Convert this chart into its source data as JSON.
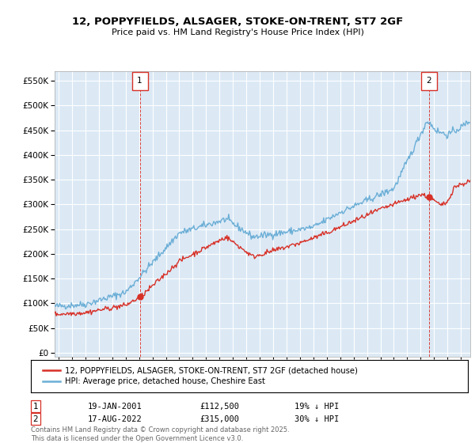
{
  "title_line1": "12, POPPYFIELDS, ALSAGER, STOKE-ON-TRENT, ST7 2GF",
  "title_line2": "Price paid vs. HM Land Registry's House Price Index (HPI)",
  "bg_color": "#dce9f5",
  "grid_color": "#ffffff",
  "hpi_color": "#6baed6",
  "price_color": "#d73027",
  "sale1_label": "19-JAN-2001",
  "sale1_value_str": "£112,500",
  "sale1_pct": "19% ↓ HPI",
  "sale2_label": "17-AUG-2022",
  "sale2_value_str": "£315,000",
  "sale2_pct": "30% ↓ HPI",
  "legend_label1": "12, POPPYFIELDS, ALSAGER, STOKE-ON-TRENT, ST7 2GF (detached house)",
  "legend_label2": "HPI: Average price, detached house, Cheshire East",
  "footnote": "Contains HM Land Registry data © Crown copyright and database right 2025.\nThis data is licensed under the Open Government Licence v3.0.",
  "yticks": [
    0,
    50000,
    100000,
    150000,
    200000,
    250000,
    300000,
    350000,
    400000,
    450000,
    500000,
    550000
  ],
  "ylim": [
    -8000,
    570000
  ],
  "xlim_start": 1994.7,
  "xlim_end": 2025.7,
  "sale1_x": 2001.05,
  "sale1_y": 112500,
  "sale2_x": 2022.63,
  "sale2_y": 315000
}
